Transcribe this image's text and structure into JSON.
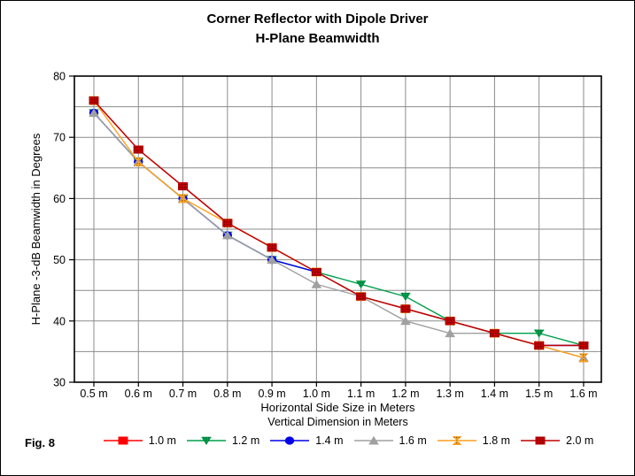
{
  "window": {
    "background": "#FFFFFF",
    "border_color": "#000000"
  },
  "title": {
    "line1": "Corner Reflector with Dipole Driver",
    "line2": "H-Plane Beamwidth"
  },
  "fig_label": "Fig. 8",
  "chart_data": {
    "type": "line",
    "title": "Corner Reflector with Dipole Driver H-Plane Beamwidth",
    "xlabel": "Horizontal Side Size in Meters",
    "ylabel": "H-Plane -3-dB Beamwidth in Degrees",
    "legend_title": "Vertical Dimension in Meters",
    "legend_position": "bottom",
    "grid": true,
    "grid_color": "#8C8C8C",
    "axis_color": "#000000",
    "ylim": [
      30,
      80
    ],
    "y_tick_labels": [
      80,
      70,
      60,
      50,
      40,
      30
    ],
    "y_grid_step": 5,
    "x_categories": [
      "0.5 m",
      "0.6 m",
      "0.7 m",
      "0.8 m",
      "0.9 m",
      "1.0 m",
      "1.1 m",
      "1.2 m",
      "1.3 m",
      "1.4 m",
      "1.5 m",
      "1.6 m"
    ],
    "series": [
      {
        "name": "1.0 m",
        "marker": "square",
        "color": "#FF0000",
        "patterned": false,
        "values": [
          76,
          68,
          62,
          56,
          52,
          48,
          44,
          42,
          40,
          38,
          36,
          36
        ]
      },
      {
        "name": "1.2 m",
        "marker": "triangle-down",
        "color": "#00A04C",
        "patterned": true,
        "values": [
          74,
          66,
          60,
          54,
          50,
          48,
          46,
          44,
          40,
          38,
          38,
          36
        ]
      },
      {
        "name": "1.4 m",
        "marker": "circle",
        "color": "#0000E8",
        "patterned": false,
        "values": [
          74,
          66,
          60,
          54,
          50,
          48,
          44,
          42,
          40,
          38,
          36,
          36
        ]
      },
      {
        "name": "1.6 m",
        "marker": "triangle-up",
        "color": "#A0A0A0",
        "patterned": false,
        "values": [
          74,
          66,
          60,
          54,
          50,
          46,
          44,
          40,
          38,
          38,
          36,
          34
        ]
      },
      {
        "name": "1.8 m",
        "marker": "bowtie",
        "color": "#FFA11E",
        "patterned": true,
        "values": [
          76,
          66,
          60,
          56,
          52,
          48,
          44,
          42,
          40,
          38,
          36,
          34
        ]
      },
      {
        "name": "2.0 m",
        "marker": "square",
        "color": "#C00000",
        "patterned": true,
        "values": [
          76,
          68,
          62,
          56,
          52,
          48,
          44,
          42,
          40,
          38,
          36,
          36
        ]
      }
    ]
  }
}
